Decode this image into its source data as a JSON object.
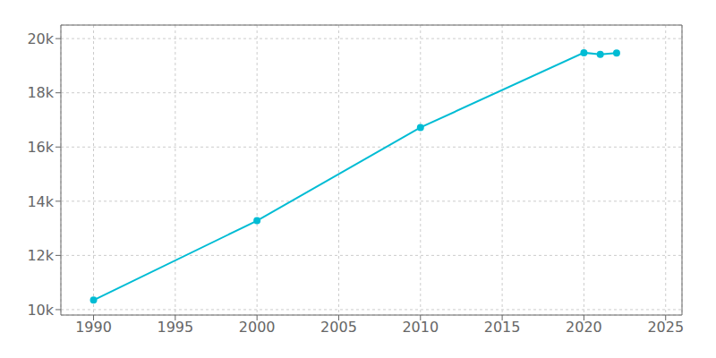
{
  "chart_data": {
    "type": "line",
    "x": [
      1990,
      2000,
      2010,
      2020,
      2021,
      2022
    ],
    "values": [
      10350,
      13280,
      16720,
      19480,
      19420,
      19470
    ],
    "color": "#00bcd4",
    "marker": "circle",
    "xlim": [
      1988,
      2026
    ],
    "ylim": [
      9800,
      20500
    ],
    "xticks": [
      1990,
      1995,
      2000,
      2005,
      2010,
      2015,
      2020,
      2025
    ],
    "yticks": [
      {
        "value": 10000,
        "label": "10k"
      },
      {
        "value": 12000,
        "label": "12k"
      },
      {
        "value": 14000,
        "label": "14k"
      },
      {
        "value": 16000,
        "label": "16k"
      },
      {
        "value": 18000,
        "label": "18k"
      },
      {
        "value": 20000,
        "label": "20k"
      }
    ],
    "grid": true
  }
}
